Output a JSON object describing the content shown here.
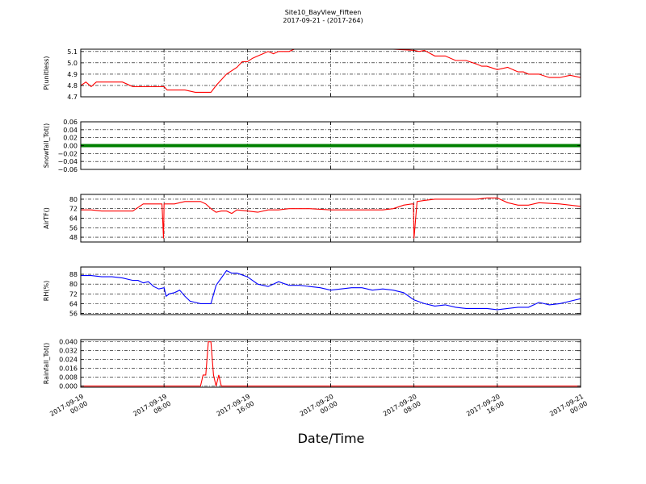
{
  "figure": {
    "title_line1": "Site10_BayView_Fifteen",
    "title_line2": "2017-09-21 - (2017-264)",
    "xlabel": "Date/Time"
  },
  "chart_data": [
    {
      "type": "line",
      "ylabel": "P(unitless)",
      "ylim": [
        4.7,
        5.12
      ],
      "yticks": [
        "5.1",
        "5.0",
        "4.9",
        "4.8",
        "4.7"
      ],
      "ytick_values": [
        5.1,
        5.0,
        4.9,
        4.8,
        4.7
      ],
      "color": "#ff0000",
      "x_hours": [
        0,
        0.5,
        1,
        1.5,
        2,
        3,
        4,
        5,
        6,
        6.5,
        7,
        7.5,
        8,
        8.3,
        9,
        10,
        11,
        11.5,
        12,
        12.5,
        13,
        14,
        15,
        15.5,
        16,
        16.5,
        17,
        17.5,
        18,
        18.5,
        19,
        19.5,
        20,
        20.5,
        21,
        22,
        24,
        26,
        28,
        30,
        32,
        32.5,
        33,
        34,
        35,
        36,
        37,
        38,
        38.5,
        39,
        40,
        41,
        42,
        42.5,
        43,
        44,
        45,
        46,
        47,
        48
      ],
      "y": [
        4.8,
        4.83,
        4.79,
        4.83,
        4.83,
        4.83,
        4.83,
        4.79,
        4.79,
        4.79,
        4.79,
        4.79,
        4.79,
        4.76,
        4.76,
        4.76,
        4.74,
        4.74,
        4.74,
        4.74,
        4.8,
        4.9,
        4.96,
        5.01,
        5.01,
        5.04,
        5.06,
        5.08,
        5.1,
        5.08,
        5.1,
        5.1,
        5.1,
        5.12,
        5.12,
        5.12,
        5.12,
        5.12,
        5.12,
        5.12,
        5.11,
        5.1,
        5.11,
        5.06,
        5.06,
        5.02,
        5.02,
        4.99,
        4.97,
        4.97,
        4.94,
        4.96,
        4.92,
        4.92,
        4.9,
        4.9,
        4.87,
        4.87,
        4.89,
        4.87
      ],
      "series_name": "P"
    },
    {
      "type": "line",
      "ylabel": "Snowfall_Tot()",
      "ylim": [
        -0.06,
        0.06
      ],
      "yticks": [
        "0.06",
        "0.04",
        "0.02",
        "0.00",
        "−0.02",
        "−0.04",
        "−0.06"
      ],
      "ytick_values": [
        0.06,
        0.04,
        0.02,
        0.0,
        -0.02,
        -0.04,
        -0.06
      ],
      "color": "#008000",
      "x_hours": [
        0,
        48
      ],
      "y": [
        0,
        0
      ],
      "series_name": "Snowfall"
    },
    {
      "type": "line",
      "ylabel": "AirTF()",
      "ylim": [
        44,
        84
      ],
      "yticks": [
        "80",
        "72",
        "64",
        "56",
        "48"
      ],
      "ytick_values": [
        80,
        72,
        64,
        56,
        48
      ],
      "color": "#ff0000",
      "x_hours": [
        0,
        1,
        2,
        3,
        4,
        5,
        5.5,
        6,
        7,
        7.8,
        7.95,
        8.0,
        8.3,
        9,
        10,
        11,
        11.5,
        12,
        12.5,
        13,
        13.5,
        14,
        14.5,
        15,
        16,
        17,
        18,
        19,
        20,
        22,
        24,
        26,
        28,
        29,
        30,
        31,
        31.8,
        31.95,
        32.0,
        32.3,
        33,
        34,
        36,
        38,
        39,
        40,
        41,
        42,
        43,
        44,
        46,
        48
      ],
      "y": [
        71,
        71,
        70,
        70,
        70,
        70,
        73,
        76,
        76,
        76,
        47,
        76,
        76,
        76,
        78,
        78,
        78,
        76,
        72,
        69,
        70,
        70,
        68,
        71,
        70,
        69,
        71,
        71,
        72,
        72,
        71,
        71,
        71,
        71,
        72,
        75,
        76,
        76,
        47,
        78,
        79,
        80,
        80,
        80,
        81,
        81,
        77,
        75,
        75,
        77,
        76,
        74
      ],
      "series_name": "AirTF"
    },
    {
      "type": "line",
      "ylabel": "RH(%)",
      "ylim": [
        55,
        94
      ],
      "yticks": [
        "88",
        "80",
        "72",
        "64",
        "56"
      ],
      "ytick_values": [
        88,
        80,
        72,
        64,
        56
      ],
      "color": "#0000ff",
      "x_hours": [
        0,
        1,
        2,
        3,
        4,
        5,
        5.5,
        6,
        6.5,
        7,
        7.5,
        8,
        8.2,
        8.5,
        9,
        9.5,
        10,
        10.5,
        11,
        11.5,
        12,
        12.5,
        13,
        13.5,
        14,
        14.5,
        15,
        16,
        17,
        18,
        19,
        20,
        21,
        22,
        23,
        24,
        25,
        26,
        27,
        28,
        29,
        30,
        31,
        32,
        33,
        34,
        35,
        36,
        37,
        38,
        39,
        40,
        41,
        42,
        43,
        44,
        45,
        46,
        47,
        48
      ],
      "y": [
        87,
        87,
        86,
        86,
        85,
        83,
        83,
        81,
        82,
        78,
        76,
        77,
        70,
        72,
        73,
        75,
        70,
        66,
        65,
        64,
        64,
        64,
        79,
        85,
        91,
        89,
        89,
        86,
        80,
        78,
        82,
        79,
        79,
        78,
        77,
        75,
        76,
        77,
        77,
        75,
        76,
        75,
        73,
        67,
        64,
        62,
        63,
        61,
        60,
        60,
        60,
        59,
        60,
        61,
        61,
        65,
        63,
        64,
        66,
        68
      ],
      "series_name": "RH"
    },
    {
      "type": "line",
      "ylabel": "Rainfall_Tot()",
      "ylim": [
        -0.001,
        0.042
      ],
      "yticks": [
        "0.040",
        "0.032",
        "0.024",
        "0.016",
        "0.008",
        "0.000"
      ],
      "ytick_values": [
        0.04,
        0.032,
        0.024,
        0.016,
        0.008,
        0.0
      ],
      "color": "#ff0000",
      "x_hours": [
        0,
        11.5,
        11.75,
        12.0,
        12.25,
        12.5,
        12.75,
        13.0,
        13.25,
        13.5,
        13.75,
        14.0,
        48
      ],
      "y": [
        0,
        0,
        0.01,
        0.01,
        0.04,
        0.04,
        0.01,
        0.0,
        0.01,
        0.0,
        0,
        0,
        0
      ],
      "series_name": "Rainfall"
    }
  ],
  "xaxis": {
    "ticks": [
      {
        "line1": "2017-09-19",
        "line2": "00:00",
        "hours": 0
      },
      {
        "line1": "2017-09-19",
        "line2": "08:00",
        "hours": 8
      },
      {
        "line1": "2017-09-19",
        "line2": "16:00",
        "hours": 16
      },
      {
        "line1": "2017-09-20",
        "line2": "00:00",
        "hours": 24
      },
      {
        "line1": "2017-09-20",
        "line2": "08:00",
        "hours": 32
      },
      {
        "line1": "2017-09-20",
        "line2": "16:00",
        "hours": 40
      },
      {
        "line1": "2017-09-21",
        "line2": "00:00",
        "hours": 48
      }
    ],
    "range_hours": [
      0,
      48
    ],
    "grid": true
  }
}
